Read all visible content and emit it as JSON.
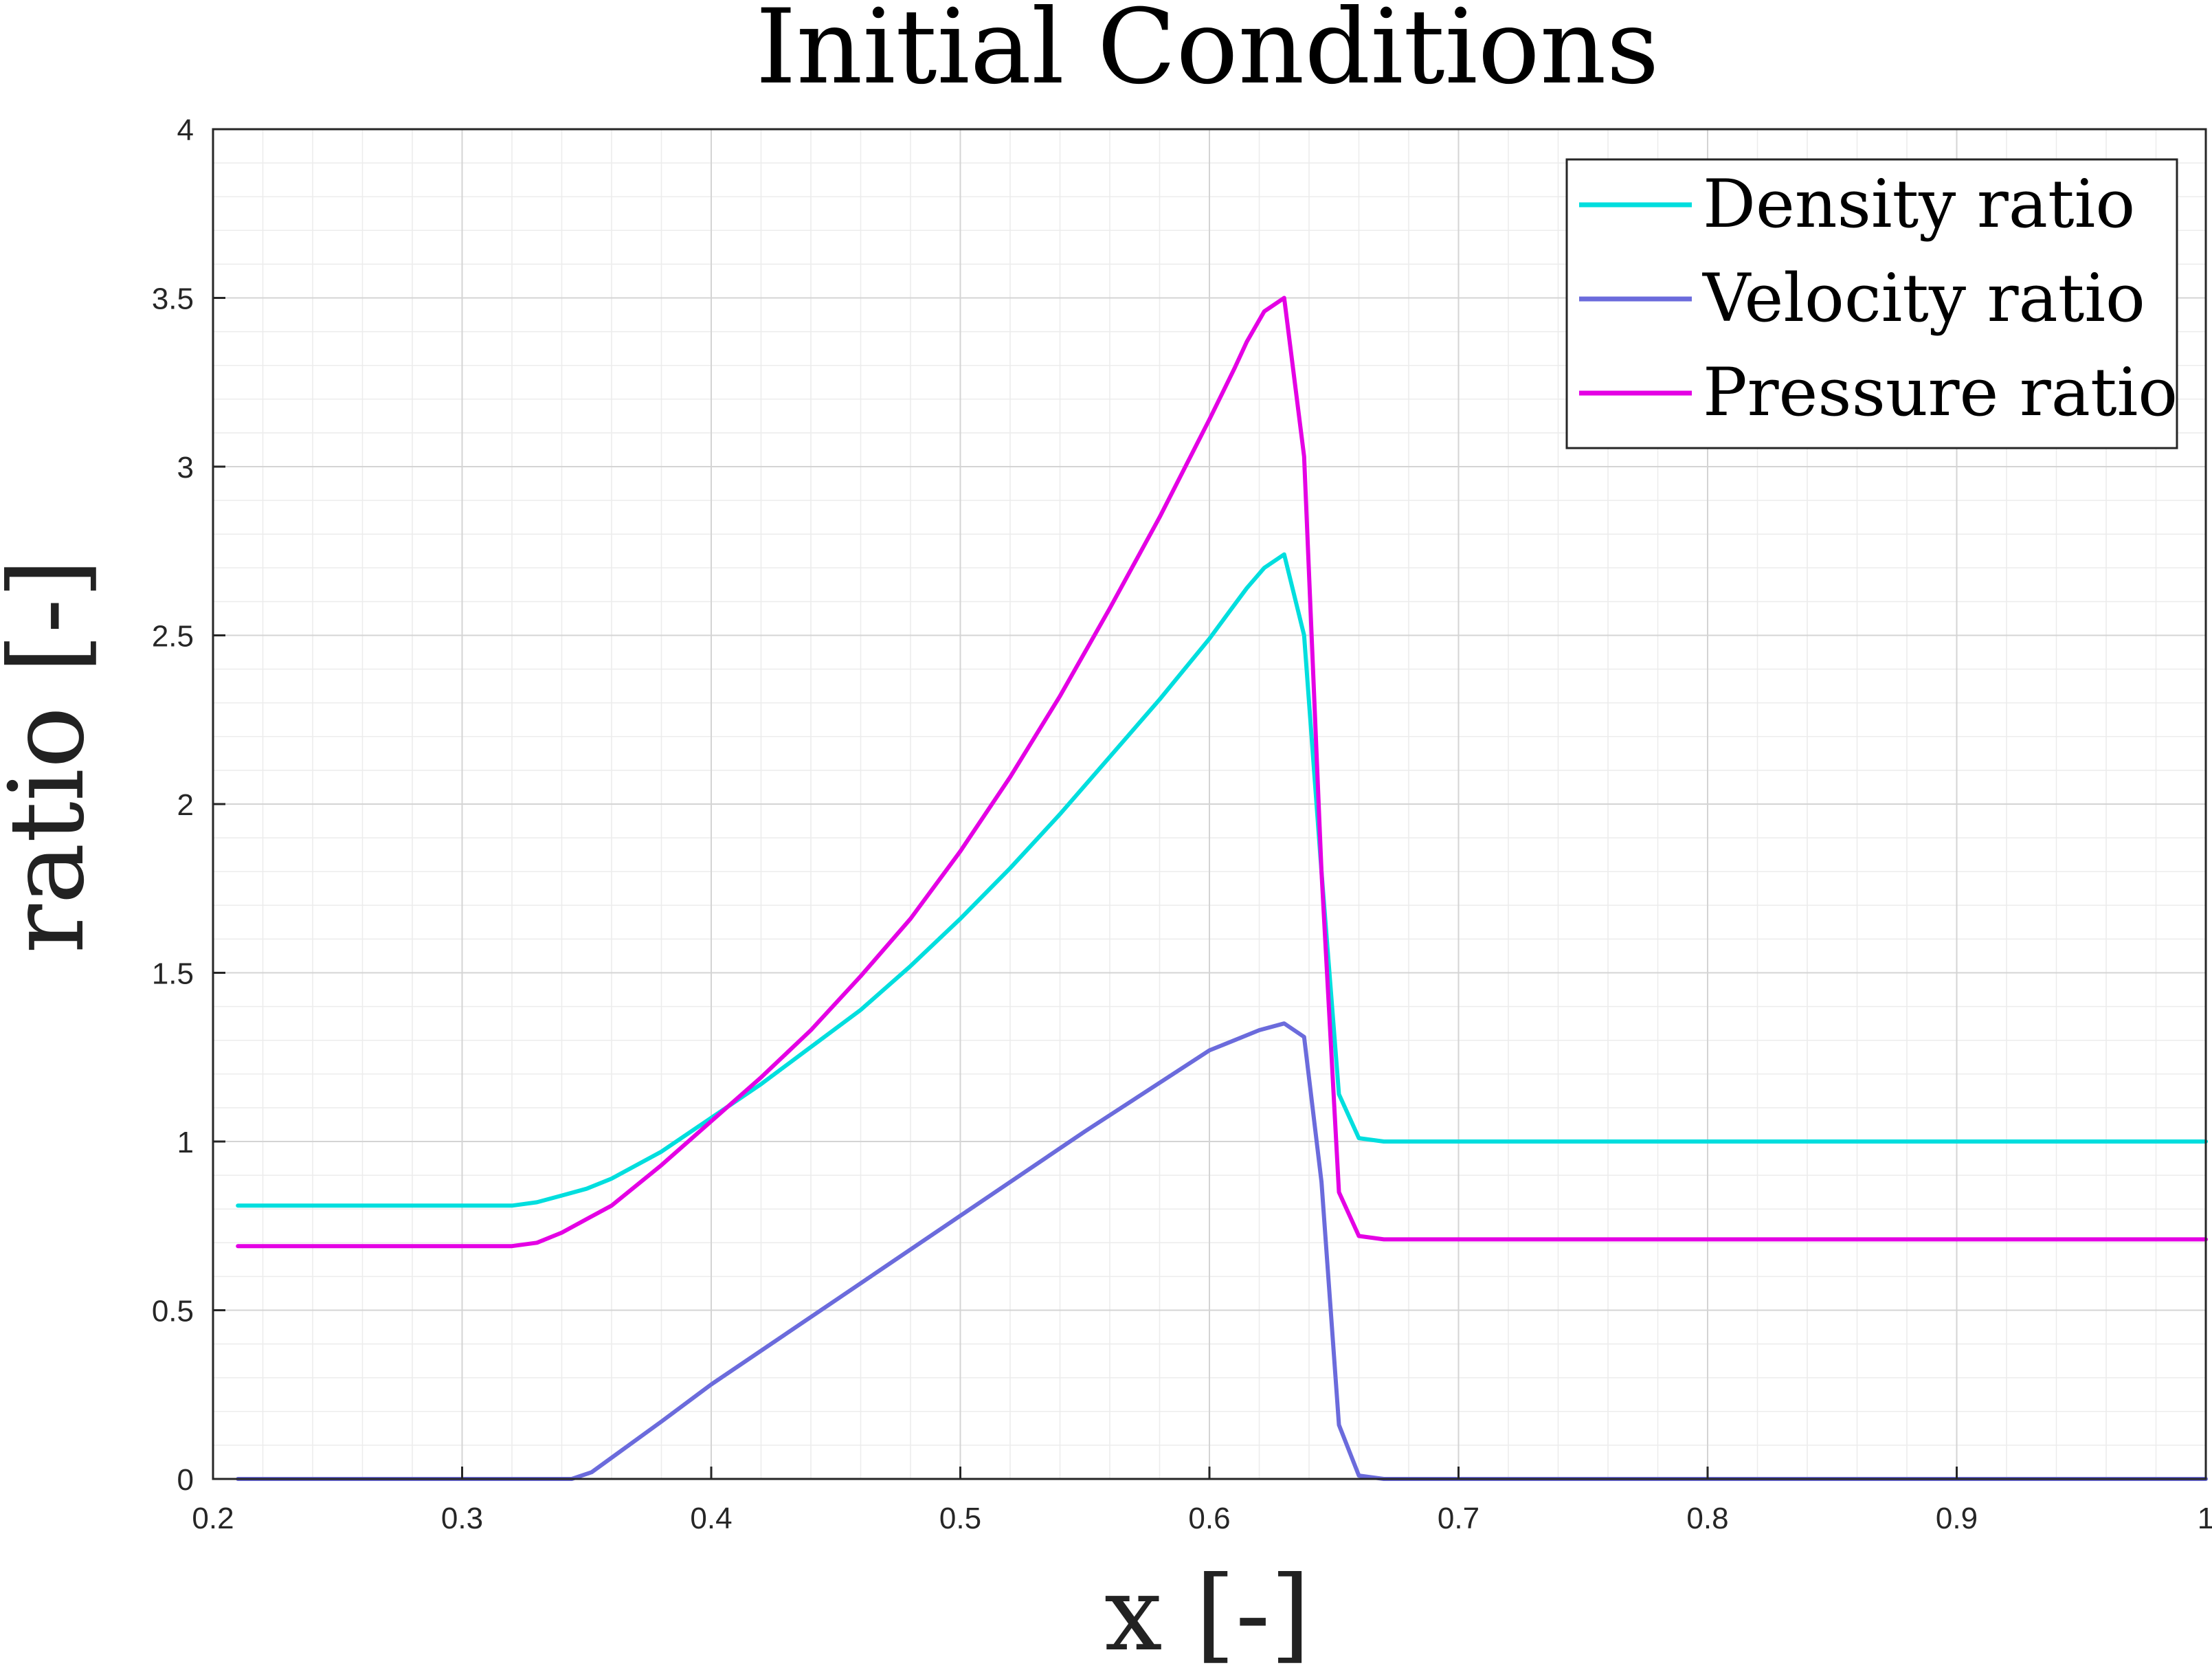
{
  "chart_data": {
    "type": "line",
    "title": "Initial Conditions",
    "xlabel": "x [-]",
    "ylabel": "ratio [-]",
    "xlim": [
      0.2,
      1
    ],
    "ylim": [
      0,
      4
    ],
    "x_ticks": [
      "0.2",
      "0.3",
      "0.4",
      "0.5",
      "0.6",
      "0.7",
      "0.8",
      "0.9",
      "1"
    ],
    "y_ticks": [
      "0",
      "0.5",
      "1",
      "1.5",
      "2",
      "2.5",
      "3",
      "3.5",
      "4"
    ],
    "grid": true,
    "minor_grid": true,
    "legend_position": "top-right",
    "series": [
      {
        "name": "Density ratio",
        "color": "#00dede",
        "points": [
          [
            0.21,
            0.81
          ],
          [
            0.32,
            0.81
          ],
          [
            0.33,
            0.82
          ],
          [
            0.34,
            0.84
          ],
          [
            0.35,
            0.86
          ],
          [
            0.36,
            0.89
          ],
          [
            0.38,
            0.97
          ],
          [
            0.4,
            1.07
          ],
          [
            0.42,
            1.17
          ],
          [
            0.44,
            1.28
          ],
          [
            0.46,
            1.39
          ],
          [
            0.48,
            1.52
          ],
          [
            0.5,
            1.66
          ],
          [
            0.52,
            1.81
          ],
          [
            0.54,
            1.97
          ],
          [
            0.56,
            2.14
          ],
          [
            0.58,
            2.31
          ],
          [
            0.6,
            2.49
          ],
          [
            0.61,
            2.59
          ],
          [
            0.615,
            2.64
          ],
          [
            0.622,
            2.7
          ],
          [
            0.63,
            2.74
          ],
          [
            0.638,
            2.5
          ],
          [
            0.645,
            1.8
          ],
          [
            0.652,
            1.14
          ],
          [
            0.66,
            1.01
          ],
          [
            0.67,
            1.0
          ],
          [
            1.0,
            1.0
          ]
        ]
      },
      {
        "name": "Velocity ratio",
        "color": "#6b6bdc",
        "points": [
          [
            0.21,
            0.0
          ],
          [
            0.344,
            0.0
          ],
          [
            0.352,
            0.02
          ],
          [
            0.38,
            0.17
          ],
          [
            0.4,
            0.28
          ],
          [
            0.45,
            0.53
          ],
          [
            0.5,
            0.78
          ],
          [
            0.55,
            1.03
          ],
          [
            0.6,
            1.27
          ],
          [
            0.62,
            1.33
          ],
          [
            0.63,
            1.35
          ],
          [
            0.638,
            1.31
          ],
          [
            0.645,
            0.88
          ],
          [
            0.652,
            0.16
          ],
          [
            0.66,
            0.01
          ],
          [
            0.67,
            0.0
          ],
          [
            1.0,
            0.0
          ]
        ]
      },
      {
        "name": "Pressure ratio",
        "color": "#e400e4",
        "points": [
          [
            0.21,
            0.69
          ],
          [
            0.32,
            0.69
          ],
          [
            0.33,
            0.7
          ],
          [
            0.34,
            0.73
          ],
          [
            0.35,
            0.77
          ],
          [
            0.36,
            0.81
          ],
          [
            0.38,
            0.93
          ],
          [
            0.4,
            1.06
          ],
          [
            0.42,
            1.19
          ],
          [
            0.44,
            1.33
          ],
          [
            0.46,
            1.49
          ],
          [
            0.48,
            1.66
          ],
          [
            0.5,
            1.86
          ],
          [
            0.52,
            2.08
          ],
          [
            0.54,
            2.32
          ],
          [
            0.56,
            2.58
          ],
          [
            0.58,
            2.85
          ],
          [
            0.6,
            3.14
          ],
          [
            0.61,
            3.29
          ],
          [
            0.615,
            3.37
          ],
          [
            0.622,
            3.46
          ],
          [
            0.63,
            3.5
          ],
          [
            0.638,
            3.03
          ],
          [
            0.645,
            1.8
          ],
          [
            0.652,
            0.85
          ],
          [
            0.66,
            0.72
          ],
          [
            0.67,
            0.71
          ],
          [
            1.0,
            0.71
          ]
        ]
      }
    ]
  }
}
